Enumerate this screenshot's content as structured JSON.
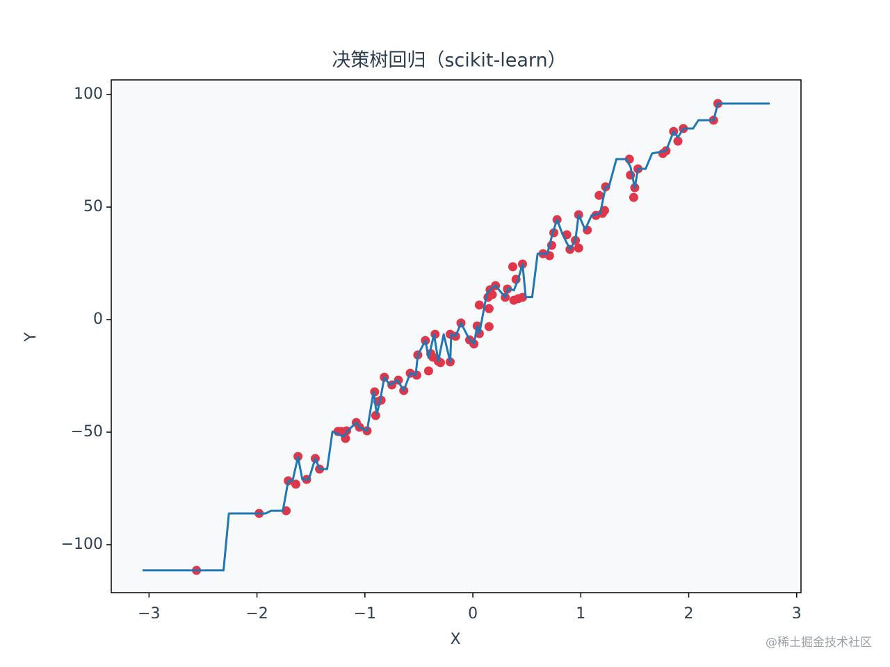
{
  "chart_data": {
    "type": "scatter",
    "title": "决策树回归（scikit-learn）",
    "x_label": "X",
    "y_label": "Y",
    "watermark": "@稀土掘金技术社区",
    "xlim": [
      -3.35,
      3.04
    ],
    "ylim": [
      -121.3,
      106.5
    ],
    "xticks": [
      {
        "value": -3,
        "label": "−3"
      },
      {
        "value": -2,
        "label": "−2"
      },
      {
        "value": -1,
        "label": "−1"
      },
      0,
      1,
      2,
      3
    ],
    "yticks": [
      {
        "value": -100,
        "label": "−100"
      },
      {
        "value": -50,
        "label": "−50"
      },
      0,
      50,
      100
    ],
    "background": "#f7f9fb",
    "series": [
      {
        "mode": "markers",
        "color": "#e0364a",
        "x": [
          -2.56,
          -1.98,
          -1.73,
          -1.71,
          -1.64,
          -1.62,
          -1.54,
          -1.46,
          -1.42,
          -1.25,
          -1.22,
          -1.18,
          -1.17,
          -1.08,
          -1.05,
          -0.98,
          -0.91,
          -0.9,
          -0.88,
          -0.85,
          -0.82,
          -0.75,
          -0.69,
          -0.64,
          -0.58,
          -0.52,
          -0.51,
          -0.44,
          -0.41,
          -0.39,
          -0.37,
          -0.35,
          -0.32,
          -0.3,
          -0.21,
          -0.21,
          -0.16,
          -0.11,
          -0.03,
          0.01,
          0.04,
          0.06,
          0.06,
          0.14,
          0.15,
          0.15,
          0.16,
          0.18,
          0.21,
          0.3,
          0.32,
          0.37,
          0.38,
          0.4,
          0.42,
          0.46,
          0.46,
          0.65,
          0.71,
          0.73,
          0.75,
          0.78,
          0.87,
          0.9,
          0.95,
          0.98,
          0.98,
          1.06,
          1.14,
          1.17,
          1.2,
          1.22,
          1.23,
          1.45,
          1.46,
          1.49,
          1.5,
          1.53,
          1.76,
          1.79,
          1.86,
          1.9,
          1.95,
          2.23,
          2.27
        ],
        "values": [
          -111.4,
          -86.1,
          -84.9,
          -71.6,
          -73.1,
          -60.8,
          -71.0,
          -61.7,
          -66.4,
          -49.7,
          -49.7,
          -52.8,
          -49.4,
          -45.7,
          -47.8,
          -49.4,
          -32.1,
          -42.6,
          -36.4,
          -35.8,
          -25.6,
          -29.0,
          -26.9,
          -31.5,
          -23.8,
          -24.7,
          -15.7,
          -9.3,
          -22.8,
          -15.1,
          -16.7,
          -6.5,
          -18.5,
          -19.1,
          -18.8,
          -6.5,
          -7.4,
          -1.5,
          -9.0,
          -10.8,
          -2.8,
          6.5,
          -6.2,
          9.9,
          -3.1,
          4.9,
          13.3,
          11.1,
          15.1,
          9.9,
          13.6,
          23.5,
          8.6,
          17.9,
          9.3,
          24.7,
          9.9,
          29.3,
          28.4,
          33.0,
          38.6,
          44.4,
          37.7,
          31.2,
          35.2,
          31.8,
          46.6,
          39.8,
          46.3,
          55.2,
          47.2,
          48.5,
          59.0,
          71.3,
          64.2,
          54.3,
          58.6,
          67.0,
          73.8,
          75.0,
          83.6,
          79.3,
          84.9,
          88.6,
          96.0
        ]
      },
      {
        "mode": "lines",
        "color": "#1f77b4",
        "x": [
          -3.06,
          -2.31,
          -2.26,
          -1.92,
          -1.87,
          -1.76,
          -1.71,
          -1.67,
          -1.62,
          -1.58,
          -1.52,
          -1.46,
          -1.42,
          -1.35,
          -1.3,
          -1.2,
          -1.16,
          -1.08,
          -1.05,
          -0.98,
          -0.92,
          -0.89,
          -0.86,
          -0.82,
          -0.77,
          -0.7,
          -0.64,
          -0.58,
          -0.53,
          -0.51,
          -0.44,
          -0.41,
          -0.36,
          -0.32,
          -0.27,
          -0.21,
          -0.2,
          -0.16,
          -0.11,
          -0.03,
          0.01,
          0.04,
          0.06,
          0.13,
          0.18,
          0.21,
          0.3,
          0.33,
          0.38,
          0.42,
          0.46,
          0.49,
          0.55,
          0.6,
          0.69,
          0.74,
          0.78,
          0.83,
          0.9,
          0.95,
          0.98,
          1.04,
          1.1,
          1.18,
          1.23,
          1.26,
          1.33,
          1.42,
          1.46,
          1.5,
          1.53,
          1.6,
          1.66,
          1.79,
          1.86,
          1.9,
          1.95,
          2.04,
          2.09,
          2.23,
          2.27,
          2.3,
          2.75
        ],
        "values": [
          -111.4,
          -111.4,
          -86.1,
          -86.1,
          -84.9,
          -84.9,
          -71.6,
          -71.6,
          -61.0,
          -71.0,
          -71.0,
          -61.7,
          -66.4,
          -66.4,
          -49.7,
          -52,
          -49.4,
          -45.7,
          -47.8,
          -49.4,
          -32,
          -42,
          -36,
          -25.6,
          -29,
          -26.9,
          -31.5,
          -23.8,
          -24.7,
          -15.7,
          -9.3,
          -17,
          -6.5,
          -18.5,
          -6.5,
          -18.8,
          -6.5,
          -7.4,
          -1.5,
          -9.0,
          -10.8,
          -2.8,
          -6.2,
          11.6,
          14.2,
          15.1,
          9.9,
          14,
          13,
          18,
          24.7,
          10,
          10,
          29.3,
          29.3,
          38.6,
          44.4,
          38,
          31.2,
          35.2,
          46.6,
          40,
          46.3,
          47.2,
          59.0,
          59.0,
          71.3,
          71.3,
          68,
          58.6,
          67.0,
          67.0,
          73.8,
          75.0,
          83.6,
          81,
          84.9,
          84.9,
          88.6,
          88.6,
          96.0,
          96,
          96
        ]
      }
    ]
  }
}
